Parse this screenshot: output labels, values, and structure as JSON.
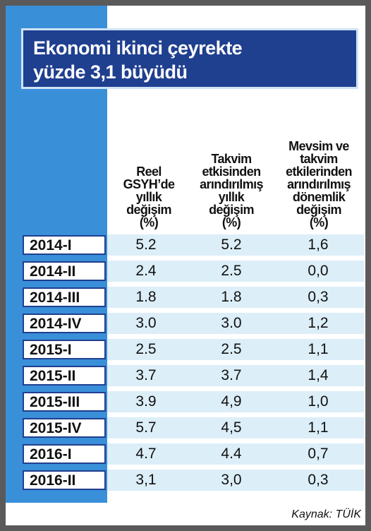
{
  "header": {
    "title": [
      "Ekonomi ikinci çeyrekte",
      "yüzde 3,1 büyüdü"
    ]
  },
  "table": {
    "columns": [
      [
        "Reel",
        "GSYH’de",
        "yıllık",
        "değişim",
        "(%)"
      ],
      [
        "Takvim",
        "etkisinden",
        "arındırılmış",
        "yıllık",
        "değişim",
        "(%)"
      ],
      [
        "Mevsim ve",
        "takvim",
        "etkilerinden",
        "arındırılmış",
        "dönemlik",
        "değişim",
        "(%)"
      ]
    ],
    "rows": [
      [
        "2014-I",
        "5.2",
        "5.2",
        "1,6"
      ],
      [
        "2014-II",
        "2.4",
        "2.5",
        "0,0"
      ],
      [
        "2014-III",
        "1.8",
        "1.8",
        "0,3"
      ],
      [
        "2014-IV",
        "3.0",
        "3.0",
        "1,2"
      ],
      [
        "2015-I",
        "2.5",
        "2.5",
        "1,1"
      ],
      [
        "2015-II",
        "3.7",
        "3.7",
        "1,4"
      ],
      [
        "2015-III",
        "3.9",
        "4,9",
        "1,0"
      ],
      [
        "2015-IV",
        "5.7",
        "4,5",
        "1,1"
      ],
      [
        "2016-I",
        "4.7",
        "4.4",
        "0,7"
      ],
      [
        "2016-II",
        "3,1",
        "3,0",
        "0,3"
      ]
    ]
  },
  "footer": {
    "source": "Kaynak: TÜİK"
  }
}
